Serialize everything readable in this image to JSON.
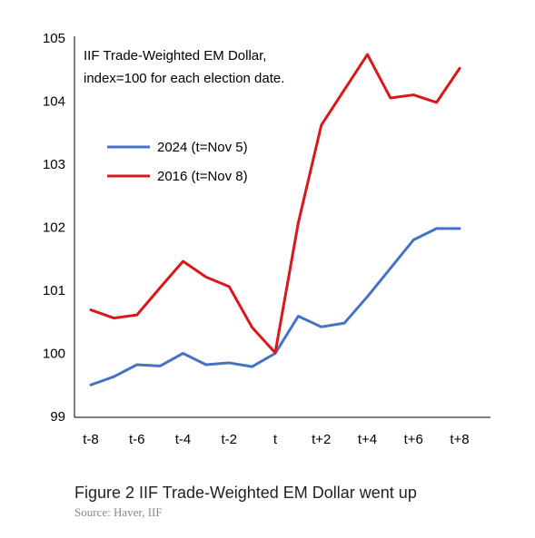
{
  "chart_data": {
    "type": "line",
    "annotation": [
      "IIF Trade-Weighted EM Dollar,",
      "index=100 for each election date."
    ],
    "x": [
      -8,
      -7,
      -6,
      -5,
      -4,
      -3,
      -2,
      -1,
      0,
      1,
      2,
      3,
      4,
      5,
      6,
      7,
      8
    ],
    "xticks": [
      {
        "value": -8,
        "label": "t-8"
      },
      {
        "value": -6,
        "label": "t-6"
      },
      {
        "value": -4,
        "label": "t-4"
      },
      {
        "value": -2,
        "label": "t-2"
      },
      {
        "value": 0,
        "label": "t"
      },
      {
        "value": 2,
        "label": "t+2"
      },
      {
        "value": 4,
        "label": "t+4"
      },
      {
        "value": 6,
        "label": "t+6"
      },
      {
        "value": 8,
        "label": "t+8"
      }
    ],
    "yticks": [
      99,
      100,
      101,
      102,
      103,
      104,
      105
    ],
    "ylim": [
      99,
      105
    ],
    "xlim": [
      -8,
      8
    ],
    "grid": false,
    "legend_position": "upper-left",
    "series": [
      {
        "name": "2024 (t=Nov 5)",
        "color": "#4472C4",
        "values": [
          99.5,
          99.63,
          99.82,
          99.8,
          100.0,
          99.82,
          99.85,
          99.79,
          100.0,
          100.59,
          100.42,
          100.48,
          100.9,
          101.35,
          101.8,
          101.98,
          101.98
        ]
      },
      {
        "name": "2016 (t=Nov 8)",
        "color": "#D7191C",
        "values": [
          100.69,
          100.56,
          100.61,
          101.04,
          101.46,
          101.21,
          101.06,
          100.41,
          100.01,
          102.07,
          103.62,
          104.18,
          104.74,
          104.05,
          104.1,
          103.98,
          104.52
        ]
      }
    ]
  },
  "caption": "Figure 2  IIF Trade-Weighted EM Dollar went up",
  "source": "Source: Haver, IIF"
}
